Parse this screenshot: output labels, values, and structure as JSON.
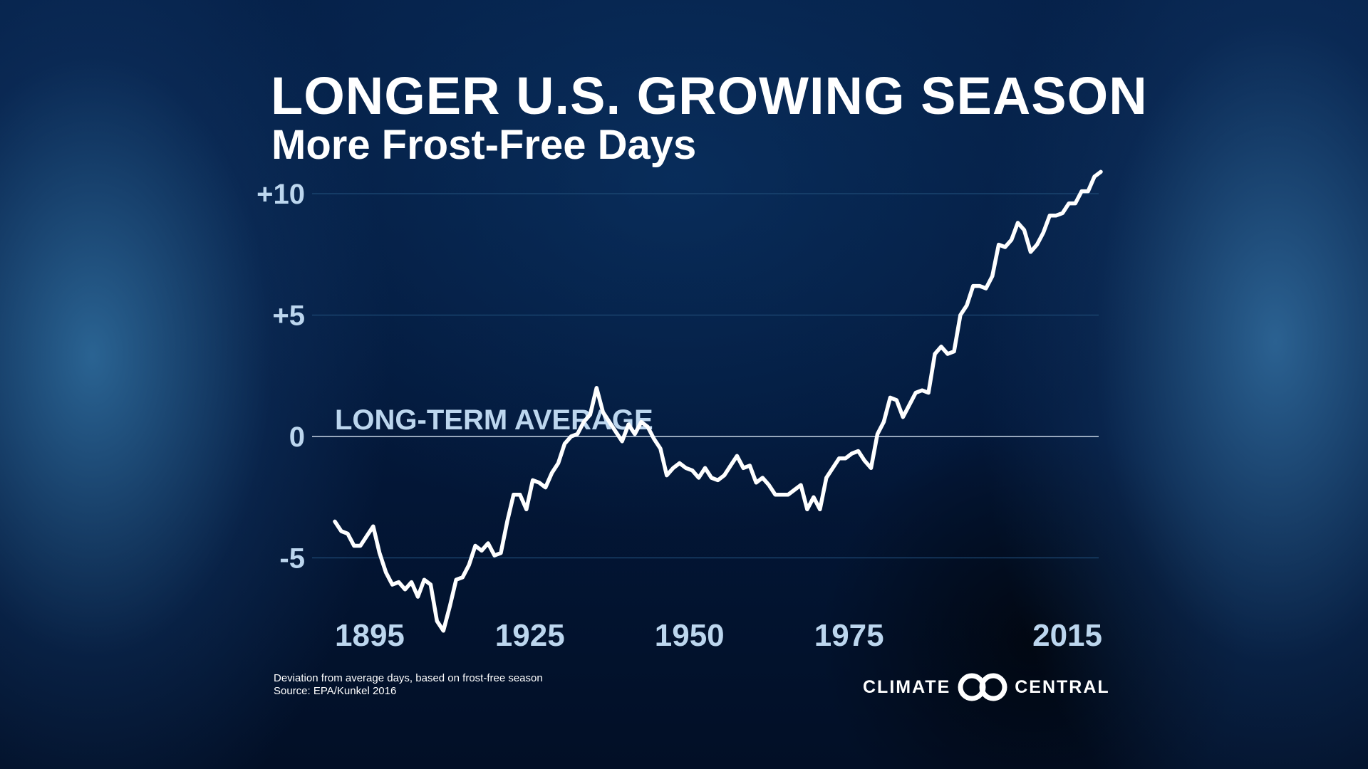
{
  "title": "LONGER U.S. GROWING SEASON",
  "subtitle": "More Frost-Free Days",
  "footnote": {
    "line1": "Deviation from average days, based on frost-free season",
    "line2": "Source: EPA/Kunkel 2016"
  },
  "logo": {
    "left": "CLIMATE",
    "right": "CENTRAL"
  },
  "colors": {
    "line": "#ffffff",
    "tick_label": "#bcd6ee",
    "average_line": "#c8d6e6",
    "gridline": "#1e4a75"
  },
  "chart_data": {
    "type": "line",
    "title": "LONGER U.S. GROWING SEASON",
    "subtitle": "More Frost-Free Days",
    "xlabel": "",
    "ylabel": "",
    "xlim": [
      1890,
      2018
    ],
    "ylim": [
      -7.5,
      10.5
    ],
    "x_ticks": [
      1895,
      1925,
      1950,
      1975,
      2015
    ],
    "y_ticks": [
      {
        "value": 10,
        "label": "+10"
      },
      {
        "value": 5,
        "label": "+5"
      },
      {
        "value": 0,
        "label": "0"
      },
      {
        "value": -5,
        "label": "-5"
      }
    ],
    "reference_line": {
      "value": 0,
      "label": "LONG-TERM AVERAGE"
    },
    "grid": "horizontal",
    "series": [
      {
        "name": "",
        "x": [
          1895,
          1896,
          1897,
          1898,
          1899,
          1900,
          1901,
          1902,
          1903,
          1904,
          1905,
          1906,
          1907,
          1908,
          1909,
          1910,
          1911,
          1912,
          1913,
          1914,
          1915,
          1916,
          1917,
          1918,
          1919,
          1920,
          1921,
          1922,
          1923,
          1924,
          1925,
          1926,
          1927,
          1928,
          1929,
          1930,
          1931,
          1932,
          1933,
          1934,
          1935,
          1936,
          1937,
          1938,
          1939,
          1940,
          1941,
          1942,
          1943,
          1944,
          1945,
          1946,
          1947,
          1948,
          1949,
          1950,
          1951,
          1952,
          1953,
          1954,
          1955,
          1956,
          1957,
          1958,
          1959,
          1960,
          1961,
          1962,
          1963,
          1964,
          1965,
          1966,
          1967,
          1968,
          1969,
          1970,
          1971,
          1972,
          1973,
          1974,
          1975,
          1976,
          1977,
          1978,
          1979,
          1980,
          1981,
          1982,
          1983,
          1984,
          1985,
          1986,
          1987,
          1988,
          1989,
          1990,
          1991,
          1992,
          1993,
          1994,
          1995,
          1996,
          1997,
          1998,
          1999,
          2000,
          2001,
          2002,
          2003,
          2004,
          2005,
          2006,
          2007,
          2008,
          2009,
          2010,
          2011,
          2012,
          2013,
          2014,
          2015
        ],
        "values": [
          -3.5,
          -3.9,
          -4.0,
          -4.5,
          -4.5,
          -4.1,
          -3.7,
          -4.8,
          -5.6,
          -6.1,
          -6.0,
          -6.3,
          -6.0,
          -6.6,
          -5.9,
          -6.1,
          -7.6,
          -8.0,
          -7.0,
          -5.9,
          -5.8,
          -5.3,
          -4.5,
          -4.7,
          -4.4,
          -4.9,
          -4.8,
          -3.5,
          -2.4,
          -2.4,
          -3.0,
          -1.8,
          -1.9,
          -2.1,
          -1.5,
          -1.1,
          -0.3,
          0.0,
          0.1,
          0.6,
          0.9,
          2.0,
          1.0,
          0.6,
          0.2,
          -0.2,
          0.5,
          0.1,
          0.6,
          0.4,
          -0.1,
          -0.5,
          -1.6,
          -1.3,
          -1.1,
          -1.3,
          -1.4,
          -1.7,
          -1.3,
          -1.7,
          -1.8,
          -1.6,
          -1.2,
          -0.8,
          -1.3,
          -1.2,
          -1.9,
          -1.7,
          -2.0,
          -2.4,
          -2.4,
          -2.4,
          -2.2,
          -2.0,
          -3.0,
          -2.5,
          -3.0,
          -1.7,
          -1.3,
          -0.9,
          -0.9,
          -0.7,
          -0.6,
          -1.0,
          -1.3,
          0.1,
          0.6,
          1.6,
          1.5,
          0.8,
          1.3,
          1.8,
          1.9,
          1.8,
          3.4,
          3.7,
          3.4,
          3.5,
          5.0,
          5.4,
          6.2,
          6.2,
          6.1,
          6.6,
          7.9,
          7.8,
          8.1,
          8.8,
          8.5,
          7.6,
          7.9,
          8.4,
          9.1,
          9.1,
          9.2,
          9.6,
          9.6,
          10.1,
          10.1,
          10.7,
          10.9
        ]
      }
    ]
  }
}
